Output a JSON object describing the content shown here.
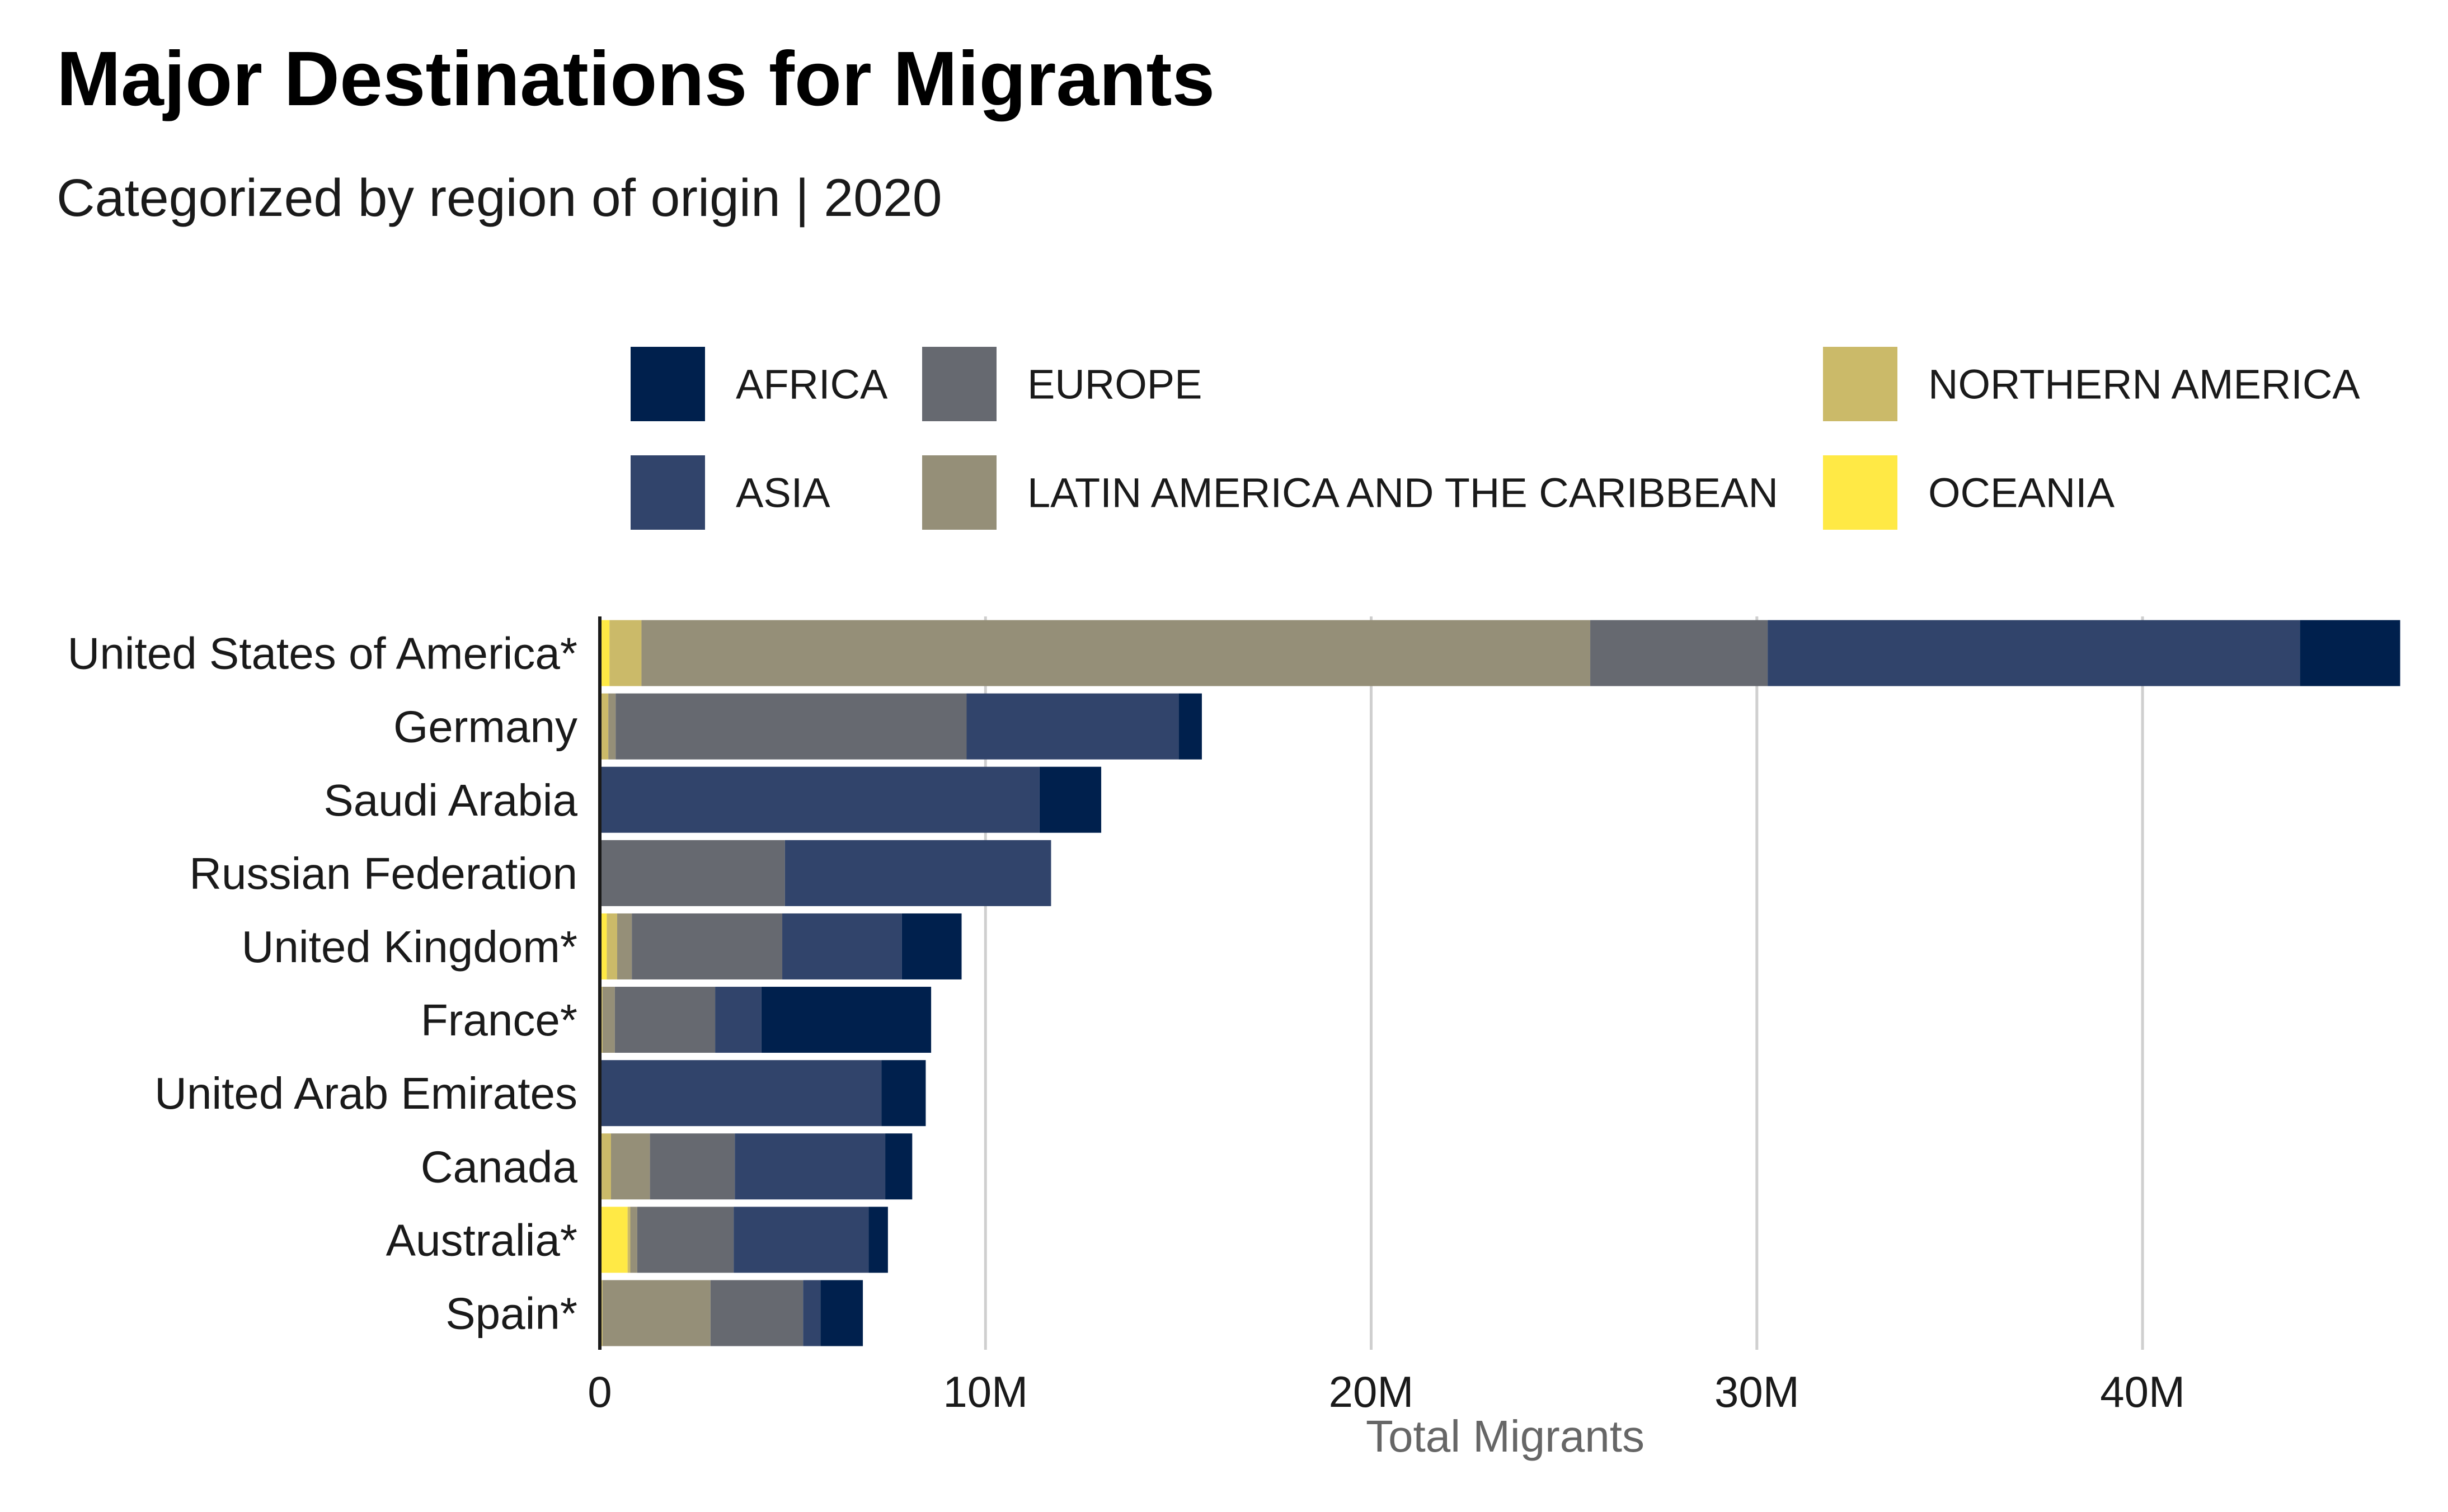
{
  "chart_data": {
    "type": "bar",
    "orientation": "horizontal",
    "stacked": true,
    "title": "Major Destinations for Migrants",
    "subtitle": "Categorized by region of origin | 2020",
    "xlabel": "Total Migrants",
    "xlim": [
      0,
      46600000
    ],
    "xticks": [
      {
        "value": 0,
        "label": "0"
      },
      {
        "value": 10000000,
        "label": "10M"
      },
      {
        "value": 20000000,
        "label": "20M"
      },
      {
        "value": 30000000,
        "label": "30M"
      },
      {
        "value": 40000000,
        "label": "40M"
      }
    ],
    "grid": "vertical major gridlines",
    "legend_position": "top",
    "categories": [
      "United States of America*",
      "Germany",
      "Saudi Arabia",
      "Russian Federation",
      "United Kingdom*",
      "France*",
      "United Arab Emirates",
      "Canada",
      "Australia*",
      "Spain*"
    ],
    "series": [
      {
        "name": "OCEANIA",
        "color": "#FFE945",
        "values": [
          250000,
          20000,
          0,
          0,
          180000,
          20000,
          0,
          20000,
          720000,
          20000
        ]
      },
      {
        "name": "NORTHERN AMERICA",
        "color": "#CBBA69",
        "values": [
          830000,
          200000,
          0,
          0,
          270000,
          50000,
          0,
          270000,
          70000,
          50000
        ]
      },
      {
        "name": "LATIN AMERICA AND THE CARIBBEAN",
        "color": "#958F78",
        "values": [
          24600000,
          190000,
          0,
          0,
          380000,
          320000,
          0,
          1010000,
          180000,
          2800000
        ]
      },
      {
        "name": "EUROPE",
        "color": "#666970",
        "values": [
          4600000,
          9100000,
          0,
          4800000,
          3900000,
          2600000,
          0,
          2200000,
          2500000,
          2400000
        ]
      },
      {
        "name": "ASIA",
        "color": "#31446B",
        "values": [
          13800000,
          5500000,
          11400000,
          6900000,
          3100000,
          1200000,
          7300000,
          3900000,
          3500000,
          450000
        ]
      },
      {
        "name": "AFRICA",
        "color": "#00204D",
        "values": [
          2600000,
          600000,
          1600000,
          0,
          1550000,
          4400000,
          1150000,
          700000,
          500000,
          1100000
        ]
      }
    ],
    "legend": [
      {
        "name": "AFRICA",
        "color": "#00204D"
      },
      {
        "name": "EUROPE",
        "color": "#666970"
      },
      {
        "name": "NORTHERN AMERICA",
        "color": "#CBBA69"
      },
      {
        "name": "ASIA",
        "color": "#31446B"
      },
      {
        "name": "LATIN AMERICA AND THE CARIBBEAN",
        "color": "#958F78"
      },
      {
        "name": "OCEANIA",
        "color": "#FFE945"
      }
    ]
  }
}
